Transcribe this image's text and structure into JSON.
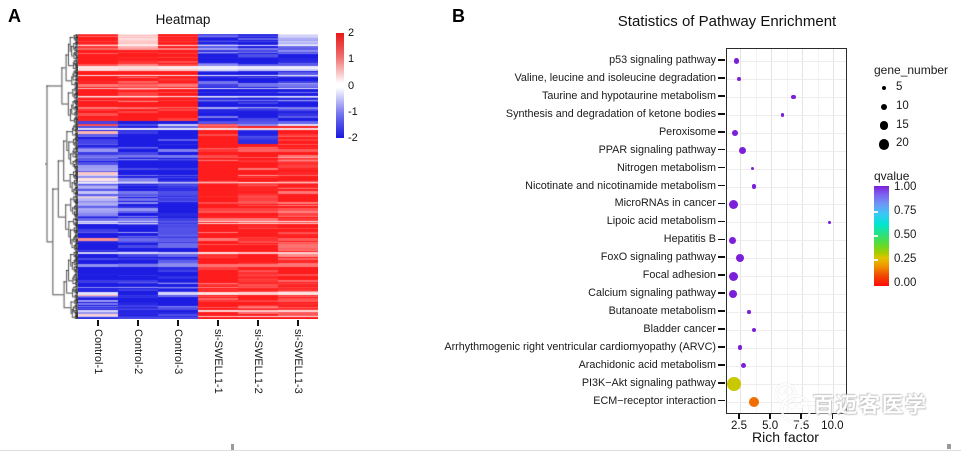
{
  "panelA": {
    "label": "A",
    "title": "Heatmap",
    "columns": [
      "Control-1",
      "Control-2",
      "Control-3",
      "si-SWELL1-1",
      "si-SWELL1-2",
      "si-SWELL1-3"
    ],
    "colorbar": {
      "ticks": [
        "2",
        "1",
        "0",
        "-1",
        "-2"
      ],
      "max_color": "#e81818",
      "mid_color": "#ffffff",
      "min_color": "#1818e0"
    }
  },
  "panelB": {
    "label": "B",
    "title": "Statistics of Pathway Enrichment",
    "xlabel": "Rich factor",
    "x_ticks": [
      "2.5",
      "5.0",
      "7.5",
      "10.0"
    ],
    "legend_size": {
      "title": "gene_number",
      "items": [
        5,
        10,
        15,
        20
      ]
    },
    "legend_color": {
      "title": "qvalue",
      "ticks": [
        "1.00",
        "0.75",
        "0.50",
        "0.25",
        "0.00"
      ]
    },
    "pathways": [
      {
        "label": "p53 signaling pathway",
        "rich_factor": 2.2,
        "gene_number": 8,
        "qvalue": 1.0
      },
      {
        "label": "Valine, leucine and isoleucine degradation",
        "rich_factor": 2.4,
        "gene_number": 6,
        "qvalue": 1.0
      },
      {
        "label": "Taurine and hypotaurine metabolism",
        "rich_factor": 6.8,
        "gene_number": 6,
        "qvalue": 1.0
      },
      {
        "label": "Synthesis and degradation of ketone bodies",
        "rich_factor": 5.9,
        "gene_number": 4,
        "qvalue": 1.0
      },
      {
        "label": "Peroxisome",
        "rich_factor": 2.1,
        "gene_number": 9,
        "qvalue": 1.0
      },
      {
        "label": "PPAR signaling pathway",
        "rich_factor": 2.7,
        "gene_number": 12,
        "qvalue": 1.0
      },
      {
        "label": "Nitrogen metabolism",
        "rich_factor": 3.5,
        "gene_number": 3,
        "qvalue": 1.0
      },
      {
        "label": "Nicotinate and nicotinamide metabolism",
        "rich_factor": 3.6,
        "gene_number": 5,
        "qvalue": 1.0
      },
      {
        "label": "MicroRNAs in cancer",
        "rich_factor": 2.0,
        "gene_number": 16,
        "qvalue": 1.0
      },
      {
        "label": "Lipoic acid metabolism",
        "rich_factor": 9.7,
        "gene_number": 2,
        "qvalue": 1.0
      },
      {
        "label": "Hepatitis B",
        "rich_factor": 1.9,
        "gene_number": 12,
        "qvalue": 1.0
      },
      {
        "label": "FoxO signaling pathway",
        "rich_factor": 2.5,
        "gene_number": 14,
        "qvalue": 1.0
      },
      {
        "label": "Focal adhesion",
        "rich_factor": 1.95,
        "gene_number": 16,
        "qvalue": 1.0
      },
      {
        "label": "Calcium signaling pathway",
        "rich_factor": 1.95,
        "gene_number": 14,
        "qvalue": 1.0
      },
      {
        "label": "Butanoate metabolism",
        "rich_factor": 3.2,
        "gene_number": 4,
        "qvalue": 1.0
      },
      {
        "label": "Bladder cancer",
        "rich_factor": 3.6,
        "gene_number": 5,
        "qvalue": 1.0
      },
      {
        "label": "Arrhythmogenic right ventricular cardiomyopathy (ARVC)",
        "rich_factor": 2.5,
        "gene_number": 7,
        "qvalue": 1.0
      },
      {
        "label": "Arachidonic acid metabolism",
        "rich_factor": 2.75,
        "gene_number": 7,
        "qvalue": 1.0
      },
      {
        "label": "PI3K−Akt signaling pathway",
        "rich_factor": 2.0,
        "gene_number": 28,
        "qvalue": 0.3
      },
      {
        "label": "ECM−receptor interaction",
        "rich_factor": 3.6,
        "gene_number": 18,
        "qvalue": 0.15
      }
    ]
  },
  "watermark": {
    "text": "百迈客医学"
  },
  "chart_data": [
    {
      "type": "heatmap",
      "title": "Heatmap",
      "columns": [
        "Control-1",
        "Control-2",
        "Control-3",
        "si-SWELL1-1",
        "si-SWELL1-2",
        "si-SWELL1-3"
      ],
      "colorbar_ticks": [
        2,
        1,
        0,
        -1,
        -2
      ],
      "value_range": [
        -2,
        2
      ],
      "rows": "several hundred unlabeled differentially expressed genes, hierarchically clustered (row dendrogram on left)",
      "pattern": "Upper gene cluster (~45% of rows): up-regulated (red) in Control-1/2/3 and down-regulated (blue) in si-SWELL1-1/2/3. Lower cluster (~55%): down-regulated (blue) in Controls and up-regulated (red) in si-SWELL1 samples. Sharp dark-blue transition band between clusters.",
      "row_dendrogram": true,
      "colors": {
        "high": "#e81818",
        "zero": "#ffffff",
        "low": "#1818e0"
      }
    },
    {
      "type": "scatter",
      "title": "Statistics of Pathway Enrichment",
      "xlabel": "Rich factor",
      "x_ticks": [
        2.5,
        5.0,
        7.5,
        10.0
      ],
      "xlim": [
        1.45,
        11.0
      ],
      "categories": [
        "p53 signaling pathway",
        "Valine, leucine and isoleucine degradation",
        "Taurine and hypotaurine metabolism",
        "Synthesis and degradation of ketone bodies",
        "Peroxisome",
        "PPAR signaling pathway",
        "Nitrogen metabolism",
        "Nicotinate and nicotinamide metabolism",
        "MicroRNAs in cancer",
        "Lipoic acid metabolism",
        "Hepatitis B",
        "FoxO signaling pathway",
        "Focal adhesion",
        "Calcium signaling pathway",
        "Butanoate metabolism",
        "Bladder cancer",
        "Arrhythmogenic right ventricular cardiomyopathy (ARVC)",
        "Arachidonic acid metabolism",
        "PI3K−Akt signaling pathway",
        "ECM−receptor interaction"
      ],
      "series": [
        {
          "name": "rich_factor",
          "values": [
            2.2,
            2.4,
            6.8,
            5.9,
            2.1,
            2.7,
            3.5,
            3.6,
            2.0,
            9.7,
            1.9,
            2.5,
            1.95,
            1.95,
            3.2,
            3.6,
            2.5,
            2.75,
            2.0,
            3.6
          ]
        },
        {
          "name": "gene_number",
          "values": [
            8,
            6,
            6,
            4,
            9,
            12,
            3,
            5,
            16,
            2,
            12,
            14,
            16,
            14,
            4,
            5,
            7,
            7,
            28,
            18
          ]
        },
        {
          "name": "qvalue",
          "values": [
            1.0,
            1.0,
            1.0,
            1.0,
            1.0,
            1.0,
            1.0,
            1.0,
            1.0,
            1.0,
            1.0,
            1.0,
            1.0,
            1.0,
            1.0,
            1.0,
            1.0,
            1.0,
            0.3,
            0.15
          ]
        }
      ],
      "size_legend": {
        "title": "gene_number",
        "values": [
          5,
          10,
          15,
          20
        ]
      },
      "color_legend": {
        "title": "qvalue",
        "range": [
          0,
          1
        ],
        "ticks": [
          1.0,
          0.75,
          0.5,
          0.25,
          0.0
        ],
        "scale": "rainbow: purple at 1.00 -> cyan ~0.75 -> green ~0.50 -> orange ~0.25 -> red at 0.00"
      },
      "grid": true,
      "legend_position": "right"
    }
  ]
}
